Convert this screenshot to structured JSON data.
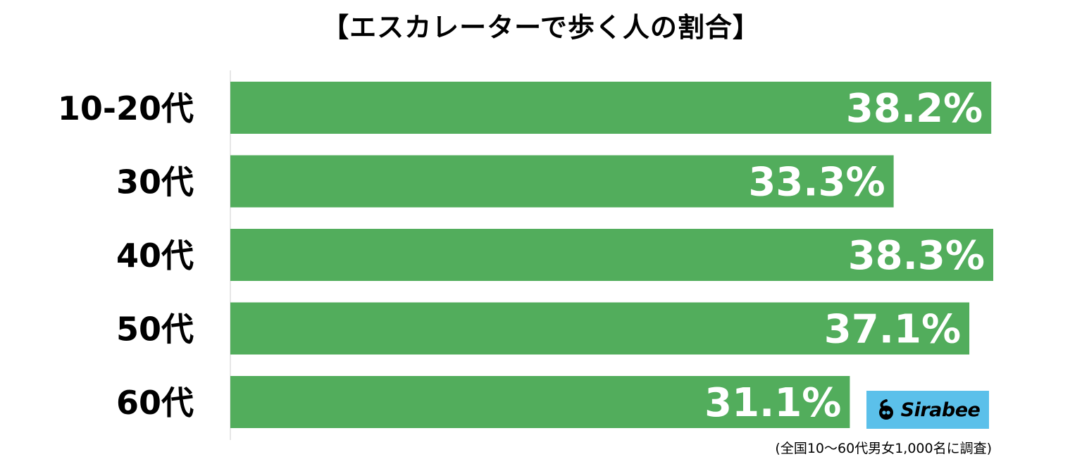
{
  "title": "【エスカレーターで歩く人の割合】",
  "note": "(全国10〜60代男女1,000名に調査)",
  "logo_text": "Sirabee",
  "colors": {
    "bar": "#52ad5c",
    "logo_bg": "#5bc0ea"
  },
  "chart_data": {
    "type": "bar",
    "orientation": "horizontal",
    "categories": [
      "10-20代",
      "30代",
      "40代",
      "50代",
      "60代"
    ],
    "values": [
      38.2,
      33.3,
      38.3,
      37.1,
      31.1
    ],
    "labels": [
      "38.2%",
      "33.3%",
      "38.3%",
      "37.1%",
      "31.1%"
    ],
    "unit": "%",
    "xlim": [
      0,
      38.3
    ],
    "grid": false
  }
}
